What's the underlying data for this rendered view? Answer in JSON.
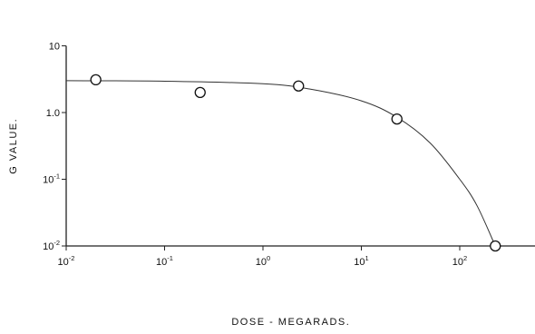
{
  "chart_data": {
    "type": "scatter",
    "title": "",
    "xlabel": "DOSE - MEGARADS.",
    "ylabel": "G VALUE.",
    "x_scale": "log",
    "y_scale": "log",
    "xlim": [
      0.01,
      700
    ],
    "ylim": [
      0.01,
      10
    ],
    "grid": false,
    "legend": "none",
    "x_ticks": [
      {
        "value": 0.01,
        "base": "10",
        "exp": "-2"
      },
      {
        "value": 0.1,
        "base": "10",
        "exp": "-1"
      },
      {
        "value": 1,
        "base": "10",
        "exp": "0"
      },
      {
        "value": 10,
        "base": "10",
        "exp": "1"
      },
      {
        "value": 100,
        "base": "10",
        "exp": "2"
      }
    ],
    "y_ticks": [
      {
        "value": 0.01,
        "base": "10",
        "exp": "-2"
      },
      {
        "value": 0.1,
        "base": "10",
        "exp": "-1"
      },
      {
        "value": 1,
        "base": "1.0",
        "exp": ""
      },
      {
        "value": 10,
        "base": "10",
        "exp": ""
      }
    ],
    "points": [
      {
        "x": 0.02,
        "y": 3.1
      },
      {
        "x": 0.23,
        "y": 2.0
      },
      {
        "x": 2.3,
        "y": 2.5
      },
      {
        "x": 23,
        "y": 0.8
      },
      {
        "x": 230,
        "y": 0.01
      }
    ],
    "fit_curve": [
      {
        "x": 0.01,
        "y": 3.0
      },
      {
        "x": 0.1,
        "y": 2.95
      },
      {
        "x": 1,
        "y": 2.7
      },
      {
        "x": 3,
        "y": 2.25
      },
      {
        "x": 10,
        "y": 1.5
      },
      {
        "x": 23,
        "y": 0.85
      },
      {
        "x": 50,
        "y": 0.35
      },
      {
        "x": 100,
        "y": 0.1
      },
      {
        "x": 150,
        "y": 0.04
      },
      {
        "x": 230,
        "y": 0.01
      }
    ]
  }
}
